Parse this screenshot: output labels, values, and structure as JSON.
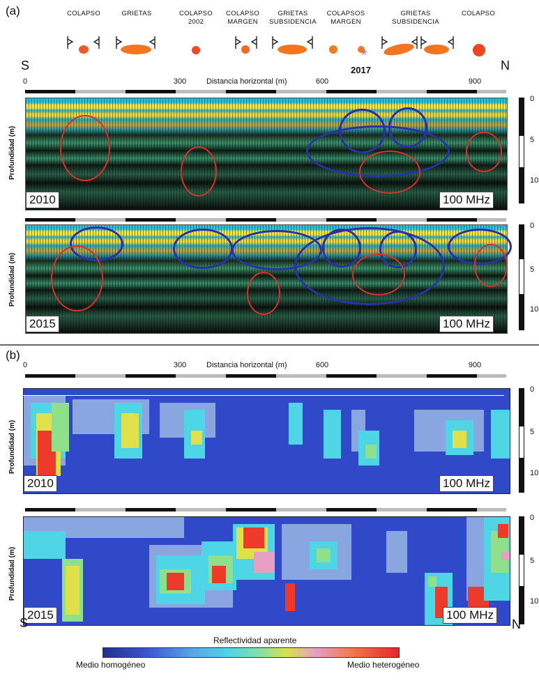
{
  "panel_a": {
    "letter": "(a)",
    "features": [
      {
        "line1": "COLAPSO",
        "line2": ""
      },
      {
        "line1": "GRIETAS",
        "line2": ""
      },
      {
        "line1": "COLAPSO",
        "line2": "2002"
      },
      {
        "line1": "COLAPSO",
        "line2": "MARGEN"
      },
      {
        "line1": "GRIETAS",
        "line2": "SUBSIDENCIA"
      },
      {
        "line1": "COLAPSOS",
        "line2": "MARGEN"
      },
      {
        "line1": "GRIETAS",
        "line2": "SUBSIDENCIA"
      },
      {
        "line1": "COLAPSO",
        "line2": ""
      }
    ],
    "south": "S",
    "north": "N",
    "year_marker": "2017",
    "axis_title": "Distancia horizontal (m)",
    "x_ticks": [
      "0",
      "300",
      "600",
      "900"
    ],
    "depth_label": "Profundidad (m)",
    "depth_ticks": [
      "0",
      "5",
      "10"
    ],
    "profile_2010": {
      "year": "2010",
      "freq": "100 MHz"
    },
    "profile_2015": {
      "year": "2015",
      "freq": "100 MHz"
    }
  },
  "panel_b": {
    "letter": "(b)",
    "axis_title": "Distancia horizontal (m)",
    "x_ticks": [
      "0",
      "300",
      "600",
      "900"
    ],
    "depth_label": "Profundidad (m)",
    "depth_ticks": [
      "0",
      "5",
      "10"
    ],
    "profile_2010": {
      "year": "2010",
      "freq": "100 MHz"
    },
    "profile_2015": {
      "year": "2015",
      "freq": "100 MHz"
    },
    "south": "S",
    "north": "N"
  },
  "colorbar": {
    "title": "Reflectividad aparente",
    "low_label": "Medio homogéneo",
    "high_label": "Medio heterogéneo"
  },
  "colors": {
    "red_ellipse": "#d8302b",
    "blue_ellipse": "#2732a8",
    "homogeneous": "#2f3fbf",
    "heterogeneous": "#e8262b",
    "marker": "#b25bc9"
  }
}
